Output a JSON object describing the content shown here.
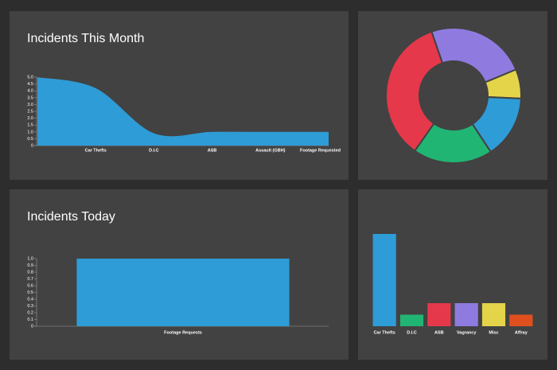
{
  "chart_data": [
    {
      "type": "area",
      "title": "Incidents This Month",
      "categories": [
        null,
        "Car Thefts",
        "D.I.C",
        "ASB",
        "Assault (GBH)",
        "Footage Requested"
      ],
      "values": [
        5,
        4.2,
        0.9,
        1,
        1,
        1
      ],
      "color": "#2e9cd6",
      "ylim": [
        0,
        5
      ],
      "yticks": [
        0,
        0.5,
        {
          "value": 1,
          "label": "1.0"
        },
        1.5,
        {
          "value": 2,
          "label": "2.0"
        },
        2.5,
        {
          "value": 3,
          "label": "3.0"
        },
        3.5,
        {
          "value": 4,
          "label": "4.0"
        },
        4.5,
        {
          "value": 5,
          "label": "5.0"
        }
      ]
    },
    {
      "type": "doughnut",
      "categories": [
        null,
        null,
        null,
        null,
        null
      ],
      "values": [
        24,
        7,
        15,
        19,
        35
      ],
      "colors": [
        "#8f7be0",
        "#e3d44a",
        "#2e9cd6",
        "#21b574",
        "#e5384b"
      ]
    },
    {
      "type": "bar",
      "title": "Incidents Today",
      "categories": [
        "Footage Requests"
      ],
      "values": [
        1
      ],
      "color": "#2e9cd6",
      "ylim": [
        0,
        1
      ],
      "yticks": [
        0,
        0.1,
        0.2,
        0.3,
        0.4,
        0.5,
        0.6,
        0.7,
        0.8,
        0.9,
        {
          "value": 1,
          "label": "1.0"
        }
      ]
    },
    {
      "type": "bar",
      "categories": [
        "Car Thefts",
        "D.I.C",
        "ASB",
        "Vagrancy",
        "Misc",
        "Affray"
      ],
      "values": [
        8,
        1,
        2,
        2,
        2,
        1
      ],
      "colors": [
        "#2e9cd6",
        "#21b574",
        "#e5384b",
        "#8f7be0",
        "#e3d44a",
        "#e0501e"
      ],
      "ylim": [
        0,
        8
      ]
    }
  ]
}
